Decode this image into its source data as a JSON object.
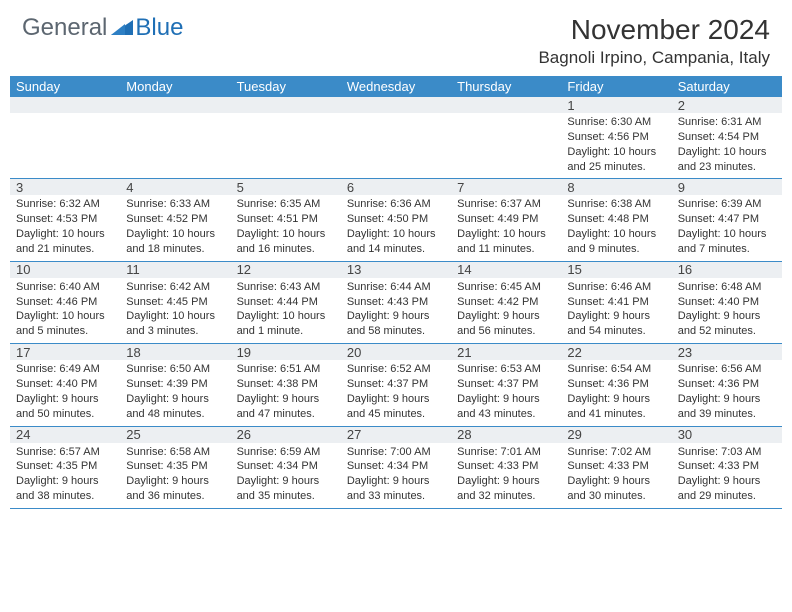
{
  "logo": {
    "text1": "General",
    "text2": "Blue"
  },
  "title": {
    "month": "November 2024",
    "location": "Bagnoli Irpino, Campania, Italy"
  },
  "colors": {
    "header_bg": "#3b8bc8",
    "header_text": "#ffffff",
    "daynum_bg": "#eceff2",
    "border": "#3b8bc8",
    "logo_gray": "#5c6670",
    "logo_blue": "#1f6fb5",
    "text": "#333333"
  },
  "day_names": [
    "Sunday",
    "Monday",
    "Tuesday",
    "Wednesday",
    "Thursday",
    "Friday",
    "Saturday"
  ],
  "weeks": [
    [
      null,
      null,
      null,
      null,
      null,
      {
        "n": "1",
        "sr": "6:30 AM",
        "ss": "4:56 PM",
        "dl": "10 hours and 25 minutes."
      },
      {
        "n": "2",
        "sr": "6:31 AM",
        "ss": "4:54 PM",
        "dl": "10 hours and 23 minutes."
      }
    ],
    [
      {
        "n": "3",
        "sr": "6:32 AM",
        "ss": "4:53 PM",
        "dl": "10 hours and 21 minutes."
      },
      {
        "n": "4",
        "sr": "6:33 AM",
        "ss": "4:52 PM",
        "dl": "10 hours and 18 minutes."
      },
      {
        "n": "5",
        "sr": "6:35 AM",
        "ss": "4:51 PM",
        "dl": "10 hours and 16 minutes."
      },
      {
        "n": "6",
        "sr": "6:36 AM",
        "ss": "4:50 PM",
        "dl": "10 hours and 14 minutes."
      },
      {
        "n": "7",
        "sr": "6:37 AM",
        "ss": "4:49 PM",
        "dl": "10 hours and 11 minutes."
      },
      {
        "n": "8",
        "sr": "6:38 AM",
        "ss": "4:48 PM",
        "dl": "10 hours and 9 minutes."
      },
      {
        "n": "9",
        "sr": "6:39 AM",
        "ss": "4:47 PM",
        "dl": "10 hours and 7 minutes."
      }
    ],
    [
      {
        "n": "10",
        "sr": "6:40 AM",
        "ss": "4:46 PM",
        "dl": "10 hours and 5 minutes."
      },
      {
        "n": "11",
        "sr": "6:42 AM",
        "ss": "4:45 PM",
        "dl": "10 hours and 3 minutes."
      },
      {
        "n": "12",
        "sr": "6:43 AM",
        "ss": "4:44 PM",
        "dl": "10 hours and 1 minute."
      },
      {
        "n": "13",
        "sr": "6:44 AM",
        "ss": "4:43 PM",
        "dl": "9 hours and 58 minutes."
      },
      {
        "n": "14",
        "sr": "6:45 AM",
        "ss": "4:42 PM",
        "dl": "9 hours and 56 minutes."
      },
      {
        "n": "15",
        "sr": "6:46 AM",
        "ss": "4:41 PM",
        "dl": "9 hours and 54 minutes."
      },
      {
        "n": "16",
        "sr": "6:48 AM",
        "ss": "4:40 PM",
        "dl": "9 hours and 52 minutes."
      }
    ],
    [
      {
        "n": "17",
        "sr": "6:49 AM",
        "ss": "4:40 PM",
        "dl": "9 hours and 50 minutes."
      },
      {
        "n": "18",
        "sr": "6:50 AM",
        "ss": "4:39 PM",
        "dl": "9 hours and 48 minutes."
      },
      {
        "n": "19",
        "sr": "6:51 AM",
        "ss": "4:38 PM",
        "dl": "9 hours and 47 minutes."
      },
      {
        "n": "20",
        "sr": "6:52 AM",
        "ss": "4:37 PM",
        "dl": "9 hours and 45 minutes."
      },
      {
        "n": "21",
        "sr": "6:53 AM",
        "ss": "4:37 PM",
        "dl": "9 hours and 43 minutes."
      },
      {
        "n": "22",
        "sr": "6:54 AM",
        "ss": "4:36 PM",
        "dl": "9 hours and 41 minutes."
      },
      {
        "n": "23",
        "sr": "6:56 AM",
        "ss": "4:36 PM",
        "dl": "9 hours and 39 minutes."
      }
    ],
    [
      {
        "n": "24",
        "sr": "6:57 AM",
        "ss": "4:35 PM",
        "dl": "9 hours and 38 minutes."
      },
      {
        "n": "25",
        "sr": "6:58 AM",
        "ss": "4:35 PM",
        "dl": "9 hours and 36 minutes."
      },
      {
        "n": "26",
        "sr": "6:59 AM",
        "ss": "4:34 PM",
        "dl": "9 hours and 35 minutes."
      },
      {
        "n": "27",
        "sr": "7:00 AM",
        "ss": "4:34 PM",
        "dl": "9 hours and 33 minutes."
      },
      {
        "n": "28",
        "sr": "7:01 AM",
        "ss": "4:33 PM",
        "dl": "9 hours and 32 minutes."
      },
      {
        "n": "29",
        "sr": "7:02 AM",
        "ss": "4:33 PM",
        "dl": "9 hours and 30 minutes."
      },
      {
        "n": "30",
        "sr": "7:03 AM",
        "ss": "4:33 PM",
        "dl": "9 hours and 29 minutes."
      }
    ]
  ],
  "labels": {
    "sunrise": "Sunrise:",
    "sunset": "Sunset:",
    "daylight": "Daylight:"
  }
}
